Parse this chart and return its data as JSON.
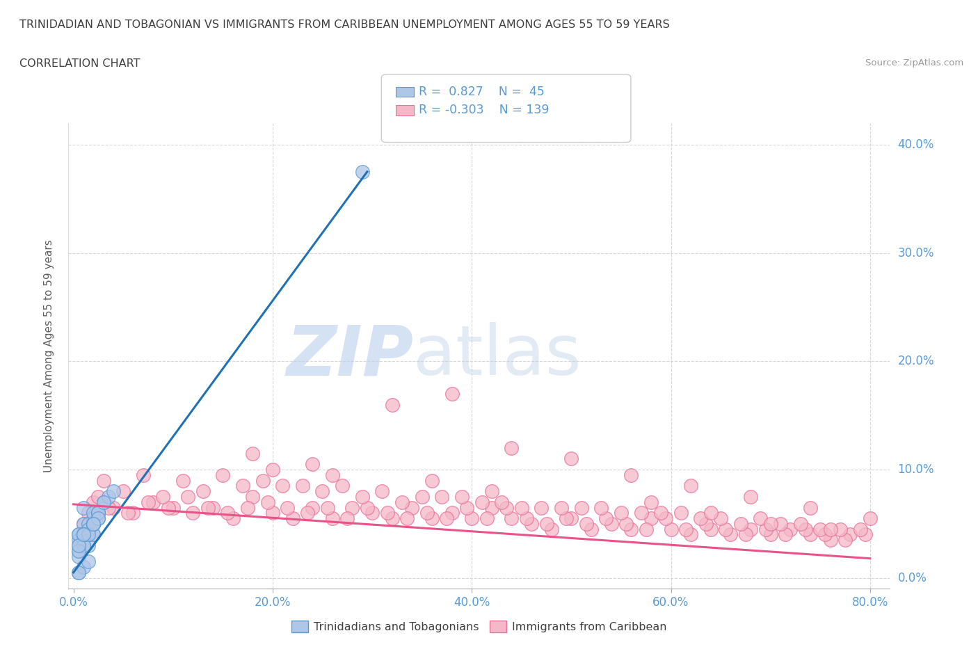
{
  "title": "TRINIDADIAN AND TOBAGONIAN VS IMMIGRANTS FROM CARIBBEAN UNEMPLOYMENT AMONG AGES 55 TO 59 YEARS",
  "subtitle": "CORRELATION CHART",
  "source": "Source: ZipAtlas.com",
  "ylabel": "Unemployment Among Ages 55 to 59 years",
  "xlim": [
    -0.005,
    0.82
  ],
  "ylim": [
    -0.01,
    0.42
  ],
  "xticks": [
    0.0,
    0.2,
    0.4,
    0.6,
    0.8
  ],
  "yticks": [
    0.0,
    0.1,
    0.2,
    0.3,
    0.4
  ],
  "xtick_labels": [
    "0.0%",
    "20.0%",
    "40.0%",
    "60.0%",
    "80.0%"
  ],
  "ytick_labels_right": [
    "0.0%",
    "10.0%",
    "20.0%",
    "30.0%",
    "40.0%"
  ],
  "blue_fill_color": "#aec6e8",
  "blue_edge_color": "#5b9bd5",
  "pink_fill_color": "#f4b8c8",
  "pink_edge_color": "#e87299",
  "blue_line_color": "#2171b5",
  "pink_line_color": "#e8538a",
  "blue_r": 0.827,
  "blue_n": 45,
  "pink_r": -0.303,
  "pink_n": 139,
  "watermark_zip": "ZIP",
  "watermark_atlas": "atlas",
  "background_color": "#ffffff",
  "grid_color": "#cccccc",
  "title_color": "#404040",
  "axis_label_color": "#5b9bd5",
  "ylabel_color": "#606060",
  "blue_scatter_x": [
    0.005,
    0.01,
    0.02,
    0.005,
    0.015,
    0.025,
    0.01,
    0.02,
    0.005,
    0.015,
    0.02,
    0.01,
    0.025,
    0.005,
    0.015,
    0.03,
    0.02,
    0.01,
    0.025,
    0.005,
    0.015,
    0.035,
    0.02,
    0.01,
    0.005,
    0.025,
    0.02,
    0.01,
    0.03,
    0.02,
    0.01,
    0.005,
    0.02,
    0.025,
    0.01,
    0.04,
    0.015,
    0.02,
    0.005,
    0.01,
    0.005,
    0.01,
    0.015,
    0.005,
    0.29
  ],
  "blue_scatter_y": [
    0.04,
    0.05,
    0.055,
    0.035,
    0.045,
    0.06,
    0.065,
    0.04,
    0.03,
    0.05,
    0.06,
    0.035,
    0.055,
    0.04,
    0.03,
    0.07,
    0.05,
    0.04,
    0.06,
    0.025,
    0.045,
    0.075,
    0.04,
    0.03,
    0.02,
    0.06,
    0.05,
    0.03,
    0.07,
    0.05,
    0.04,
    0.025,
    0.05,
    0.055,
    0.04,
    0.08,
    0.04,
    0.05,
    0.03,
    0.04,
    0.005,
    0.01,
    0.015,
    0.005,
    0.375
  ],
  "pink_scatter_x": [
    0.01,
    0.02,
    0.04,
    0.06,
    0.08,
    0.1,
    0.12,
    0.14,
    0.16,
    0.18,
    0.2,
    0.22,
    0.24,
    0.26,
    0.28,
    0.3,
    0.32,
    0.34,
    0.36,
    0.38,
    0.4,
    0.42,
    0.44,
    0.46,
    0.48,
    0.5,
    0.52,
    0.54,
    0.56,
    0.58,
    0.6,
    0.62,
    0.64,
    0.66,
    0.68,
    0.7,
    0.72,
    0.74,
    0.76,
    0.78,
    0.015,
    0.035,
    0.055,
    0.075,
    0.095,
    0.115,
    0.135,
    0.155,
    0.175,
    0.195,
    0.215,
    0.235,
    0.255,
    0.275,
    0.295,
    0.315,
    0.335,
    0.355,
    0.375,
    0.395,
    0.415,
    0.435,
    0.455,
    0.475,
    0.495,
    0.515,
    0.535,
    0.555,
    0.575,
    0.595,
    0.615,
    0.635,
    0.655,
    0.675,
    0.695,
    0.715,
    0.735,
    0.755,
    0.775,
    0.795,
    0.025,
    0.05,
    0.09,
    0.13,
    0.17,
    0.21,
    0.25,
    0.29,
    0.33,
    0.37,
    0.41,
    0.45,
    0.49,
    0.53,
    0.57,
    0.61,
    0.65,
    0.69,
    0.73,
    0.77,
    0.03,
    0.07,
    0.11,
    0.15,
    0.19,
    0.23,
    0.27,
    0.31,
    0.35,
    0.39,
    0.43,
    0.47,
    0.51,
    0.55,
    0.59,
    0.63,
    0.67,
    0.71,
    0.75,
    0.79,
    0.32,
    0.38,
    0.44,
    0.5,
    0.56,
    0.62,
    0.68,
    0.74,
    0.8,
    0.2,
    0.26,
    0.42,
    0.58,
    0.64,
    0.7,
    0.76,
    0.18,
    0.24,
    0.36
  ],
  "pink_scatter_y": [
    0.05,
    0.07,
    0.065,
    0.06,
    0.07,
    0.065,
    0.06,
    0.065,
    0.055,
    0.075,
    0.06,
    0.055,
    0.065,
    0.055,
    0.065,
    0.06,
    0.055,
    0.065,
    0.055,
    0.06,
    0.055,
    0.065,
    0.055,
    0.05,
    0.045,
    0.055,
    0.045,
    0.05,
    0.045,
    0.055,
    0.045,
    0.04,
    0.045,
    0.04,
    0.045,
    0.04,
    0.045,
    0.04,
    0.035,
    0.04,
    0.06,
    0.065,
    0.06,
    0.07,
    0.065,
    0.075,
    0.065,
    0.06,
    0.065,
    0.07,
    0.065,
    0.06,
    0.065,
    0.055,
    0.065,
    0.06,
    0.055,
    0.06,
    0.055,
    0.065,
    0.055,
    0.065,
    0.055,
    0.05,
    0.055,
    0.05,
    0.055,
    0.05,
    0.045,
    0.055,
    0.045,
    0.05,
    0.045,
    0.04,
    0.045,
    0.04,
    0.045,
    0.04,
    0.035,
    0.04,
    0.075,
    0.08,
    0.075,
    0.08,
    0.085,
    0.085,
    0.08,
    0.075,
    0.07,
    0.075,
    0.07,
    0.065,
    0.065,
    0.065,
    0.06,
    0.06,
    0.055,
    0.055,
    0.05,
    0.045,
    0.09,
    0.095,
    0.09,
    0.095,
    0.09,
    0.085,
    0.085,
    0.08,
    0.075,
    0.075,
    0.07,
    0.065,
    0.065,
    0.06,
    0.06,
    0.055,
    0.05,
    0.05,
    0.045,
    0.045,
    0.16,
    0.17,
    0.12,
    0.11,
    0.095,
    0.085,
    0.075,
    0.065,
    0.055,
    0.1,
    0.095,
    0.08,
    0.07,
    0.06,
    0.05,
    0.045,
    0.115,
    0.105,
    0.09
  ],
  "blue_trend_x": [
    0.0,
    0.295
  ],
  "blue_trend_y_start": 0.005,
  "blue_trend_y_end": 0.375,
  "pink_trend_x": [
    0.0,
    0.8
  ],
  "pink_trend_y_start": 0.068,
  "pink_trend_y_end": 0.018
}
